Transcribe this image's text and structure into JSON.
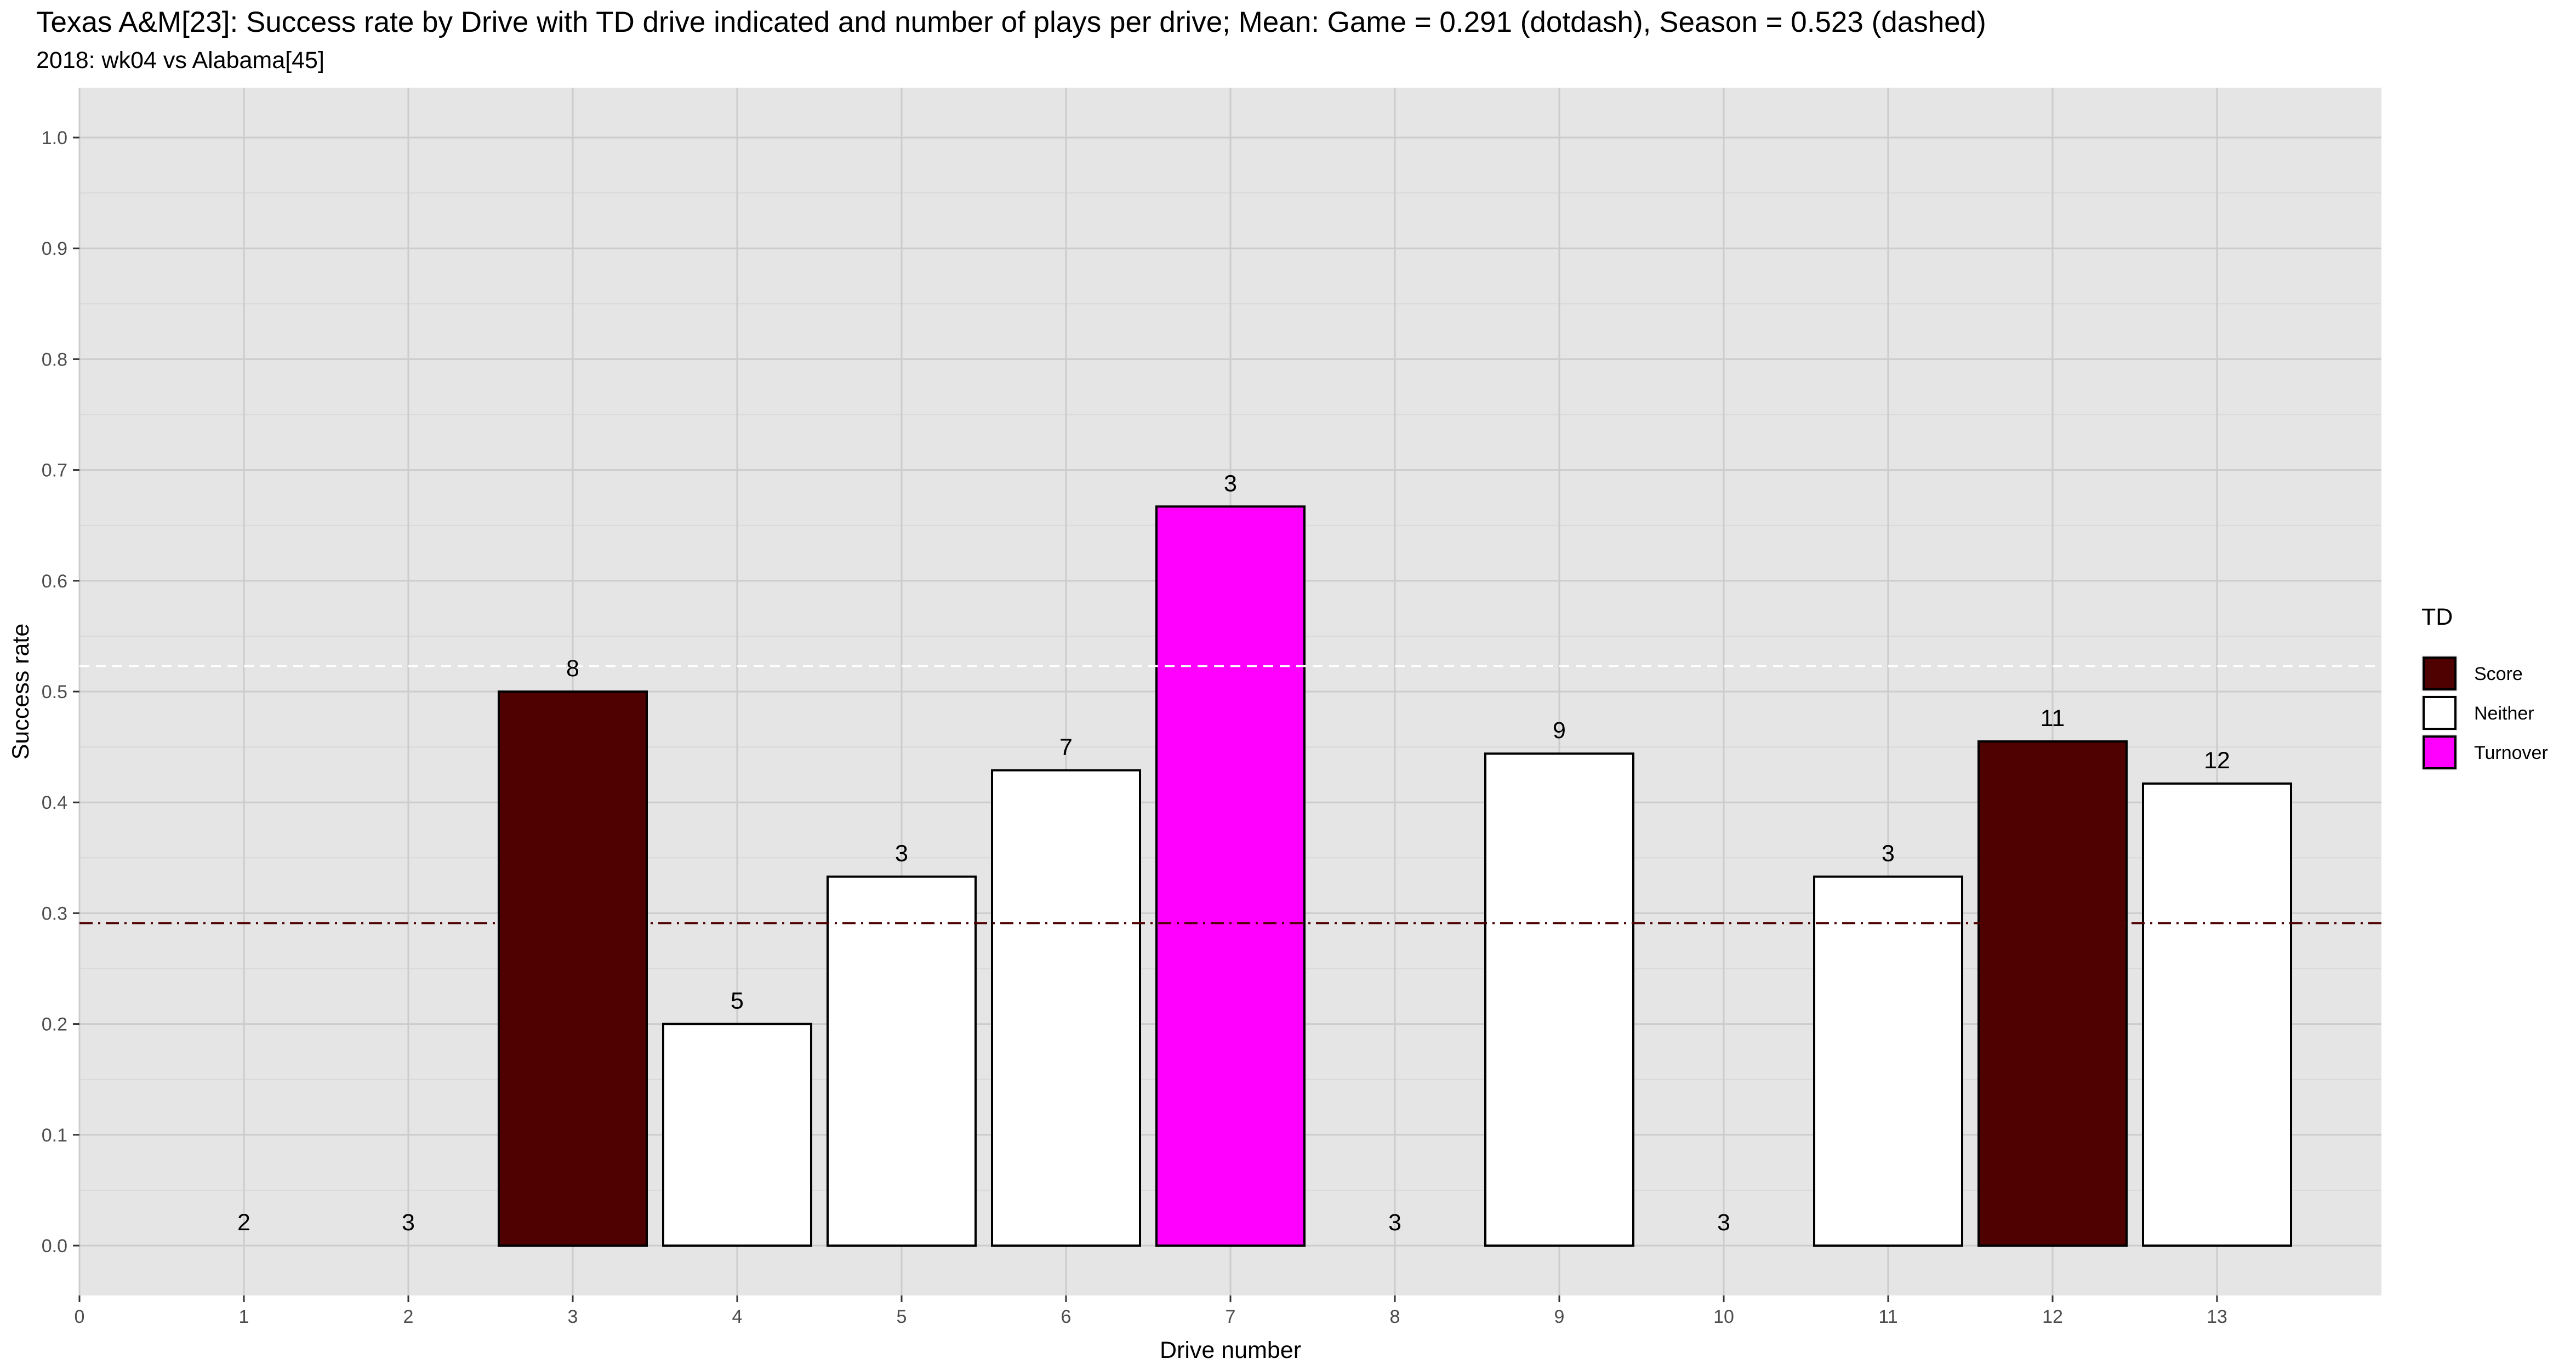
{
  "chart_data": {
    "type": "bar",
    "title": "Texas A&M[23]: Success rate by Drive with TD drive indicated and number of plays per drive; Mean: Game = 0.291 (dotdash), Season = 0.523 (dashed)",
    "subtitle": "2018: wk04 vs Alabama[45]",
    "xlabel": "Drive number",
    "ylabel": "Success rate",
    "xlim": [
      0,
      14
    ],
    "ylim": [
      -0.045,
      1.045
    ],
    "x_ticks": [
      "0",
      "1",
      "2",
      "3",
      "4",
      "5",
      "6",
      "7",
      "8",
      "9",
      "10",
      "11",
      "12",
      "13"
    ],
    "y_ticks": [
      "0.0",
      "0.1",
      "0.2",
      "0.3",
      "0.4",
      "0.5",
      "0.6",
      "0.7",
      "0.8",
      "0.9",
      "1.0"
    ],
    "grid": true,
    "bars": [
      {
        "drive": 1,
        "value": 0.0,
        "plays": "2",
        "td": "Neither"
      },
      {
        "drive": 2,
        "value": 0.0,
        "plays": "3",
        "td": "Neither"
      },
      {
        "drive": 3,
        "value": 0.5,
        "plays": "8",
        "td": "Score"
      },
      {
        "drive": 4,
        "value": 0.2,
        "plays": "5",
        "td": "Neither"
      },
      {
        "drive": 5,
        "value": 0.333,
        "plays": "3",
        "td": "Neither"
      },
      {
        "drive": 6,
        "value": 0.429,
        "plays": "7",
        "td": "Neither"
      },
      {
        "drive": 7,
        "value": 0.667,
        "plays": "3",
        "td": "Turnover"
      },
      {
        "drive": 8,
        "value": 0.0,
        "plays": "3",
        "td": "Neither"
      },
      {
        "drive": 9,
        "value": 0.444,
        "plays": "9",
        "td": "Neither"
      },
      {
        "drive": 10,
        "value": 0.0,
        "plays": "3",
        "td": "Neither"
      },
      {
        "drive": 11,
        "value": 0.333,
        "plays": "3",
        "td": "Neither"
      },
      {
        "drive": 12,
        "value": 0.455,
        "plays": "11",
        "td": "Score"
      },
      {
        "drive": 13,
        "value": 0.417,
        "plays": "12",
        "td": "Neither"
      }
    ],
    "reference_lines": [
      {
        "label": "Game",
        "value": 0.291,
        "style": "dotdash",
        "color": "#4f0000"
      },
      {
        "label": "Season",
        "value": 0.523,
        "style": "dashed",
        "color": "#ffffff"
      }
    ],
    "legend": {
      "title": "TD",
      "position": "right",
      "entries": [
        {
          "label": "Score",
          "color": "#4f0000"
        },
        {
          "label": "Neither",
          "color": "#ffffff"
        },
        {
          "label": "Turnover",
          "color": "#ff00ff"
        }
      ]
    },
    "colors": {
      "panel": "#e5e5e5",
      "grid": "#cccccc",
      "bar_outline": "#000000"
    }
  }
}
